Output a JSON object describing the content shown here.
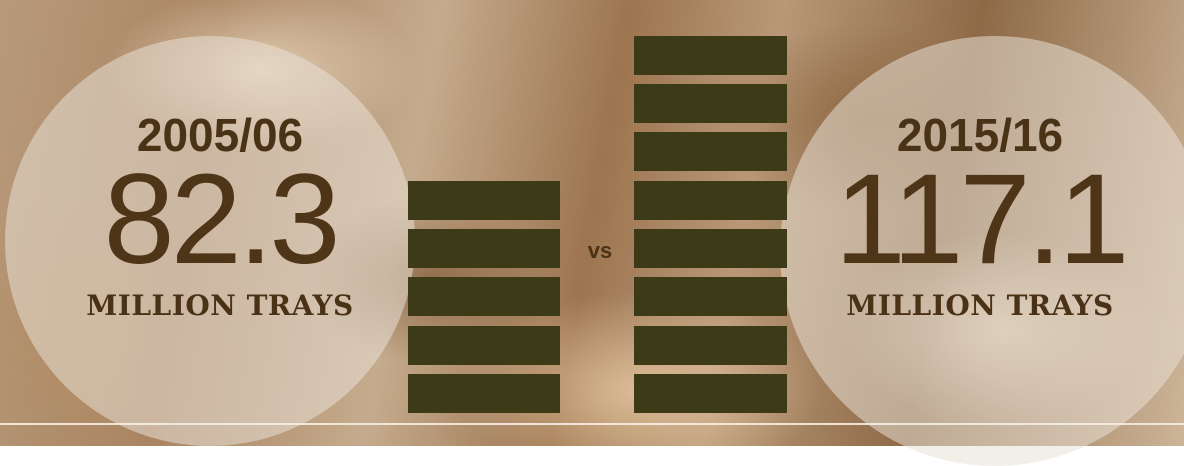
{
  "chart_data": {
    "type": "bar",
    "categories": [
      "2005/06",
      "2015/16"
    ],
    "values": [
      82.3,
      117.1
    ],
    "value_labels": [
      "82.3",
      "117.1"
    ],
    "unit_label": "MILLION TRAYS",
    "comparison_label": "vs",
    "tray_counts": [
      5,
      8
    ],
    "tray_color": "#3d3b17",
    "text_color": "#4a3216"
  }
}
